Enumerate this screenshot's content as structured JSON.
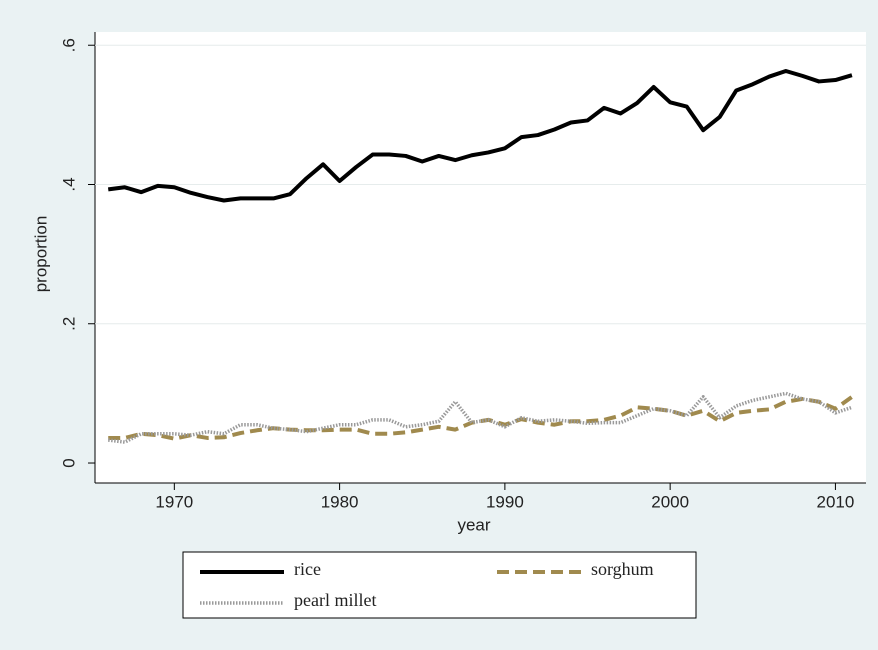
{
  "chart_data": {
    "type": "line",
    "x_label": "year",
    "y_label": "proportion",
    "x": [
      1966,
      1967,
      1968,
      1969,
      1970,
      1971,
      1972,
      1973,
      1974,
      1975,
      1976,
      1977,
      1978,
      1979,
      1980,
      1981,
      1982,
      1983,
      1984,
      1985,
      1986,
      1987,
      1988,
      1989,
      1990,
      1991,
      1992,
      1993,
      1994,
      1995,
      1996,
      1997,
      1998,
      1999,
      2000,
      2001,
      2002,
      2003,
      2004,
      2005,
      2006,
      2007,
      2008,
      2009,
      2010,
      2011
    ],
    "series": [
      {
        "name": "rice",
        "color": "#000000",
        "style": "solid",
        "values": [
          0.393,
          0.396,
          0.389,
          0.398,
          0.396,
          0.388,
          0.382,
          0.377,
          0.38,
          0.38,
          0.38,
          0.386,
          0.409,
          0.429,
          0.405,
          0.425,
          0.443,
          0.443,
          0.441,
          0.433,
          0.441,
          0.435,
          0.442,
          0.446,
          0.452,
          0.468,
          0.471,
          0.479,
          0.489,
          0.492,
          0.51,
          0.502,
          0.517,
          0.54,
          0.518,
          0.512,
          0.478,
          0.497,
          0.535,
          0.544,
          0.555,
          0.563,
          0.556,
          0.548,
          0.55,
          0.557
        ]
      },
      {
        "name": "sorghum",
        "color": "#a08a4e",
        "style": "dash",
        "values": [
          0.036,
          0.036,
          0.042,
          0.04,
          0.035,
          0.04,
          0.036,
          0.037,
          0.043,
          0.047,
          0.05,
          0.048,
          0.047,
          0.047,
          0.048,
          0.048,
          0.042,
          0.042,
          0.044,
          0.048,
          0.052,
          0.048,
          0.058,
          0.062,
          0.055,
          0.063,
          0.058,
          0.055,
          0.06,
          0.06,
          0.062,
          0.068,
          0.08,
          0.078,
          0.075,
          0.068,
          0.075,
          0.06,
          0.072,
          0.075,
          0.077,
          0.088,
          0.092,
          0.088,
          0.078,
          0.095
        ]
      },
      {
        "name": "pearl millet",
        "color": "#9a9a9a",
        "style": "dot",
        "values": [
          0.033,
          0.03,
          0.042,
          0.042,
          0.042,
          0.04,
          0.045,
          0.042,
          0.055,
          0.055,
          0.05,
          0.048,
          0.045,
          0.05,
          0.055,
          0.055,
          0.062,
          0.062,
          0.052,
          0.055,
          0.06,
          0.088,
          0.058,
          0.062,
          0.052,
          0.065,
          0.06,
          0.062,
          0.06,
          0.057,
          0.058,
          0.058,
          0.068,
          0.078,
          0.075,
          0.068,
          0.095,
          0.065,
          0.082,
          0.09,
          0.095,
          0.1,
          0.092,
          0.088,
          0.072,
          0.08
        ]
      }
    ],
    "xlim": [
      1965.2,
      2011.85
    ],
    "xticks": [
      1970,
      1980,
      1990,
      2000,
      2010
    ],
    "ylim": [
      -0.0287,
      0.619
    ],
    "yticks": [
      0,
      {
        "value": 0.2,
        "label": ".2"
      },
      {
        "value": 0.4,
        "label": ".4"
      },
      {
        "value": 0.6,
        "label": ".6"
      }
    ],
    "grid": true,
    "legend_position": "bottom"
  }
}
